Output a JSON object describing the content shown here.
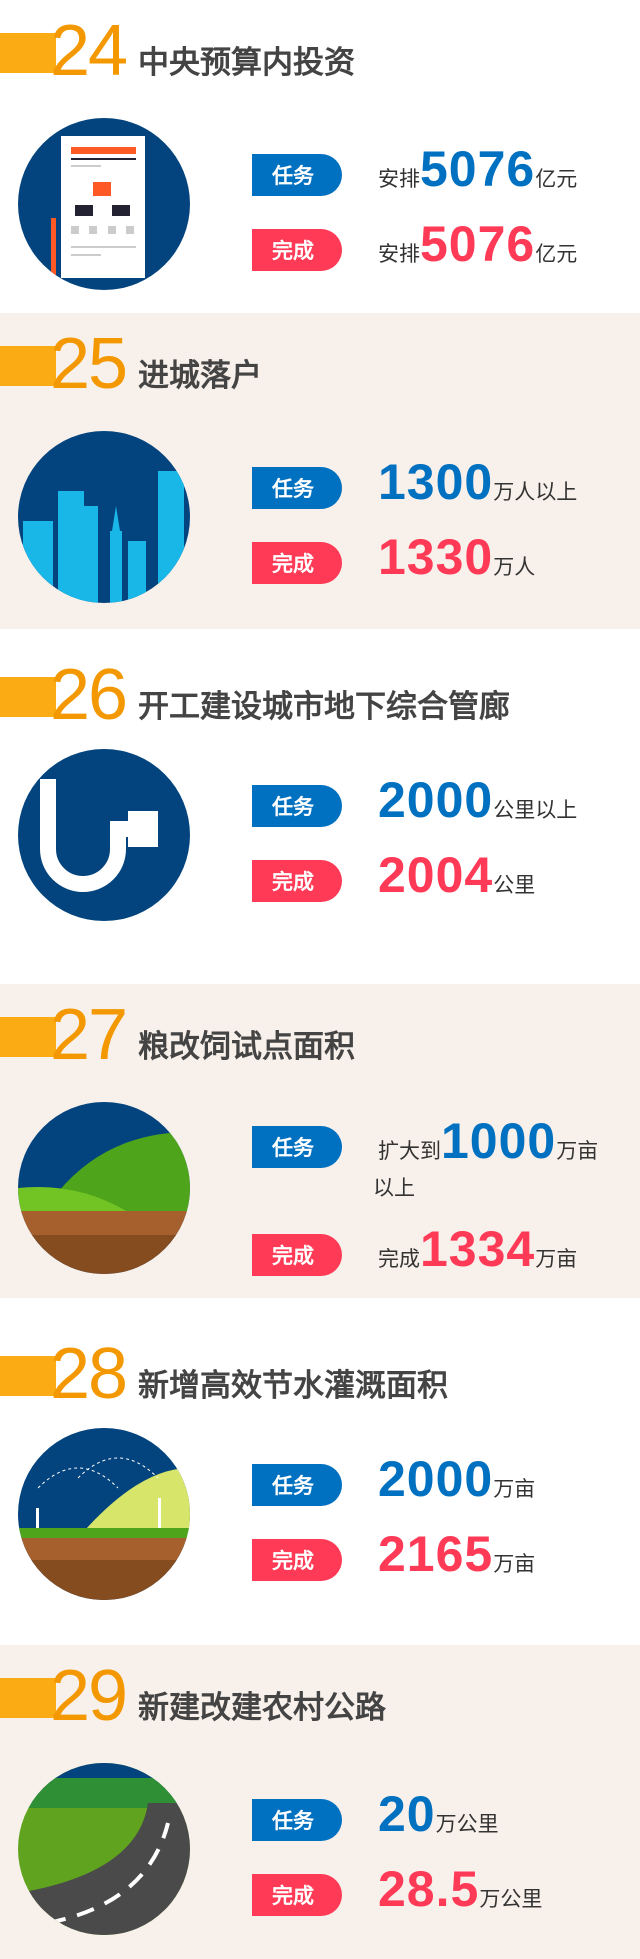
{
  "colors": {
    "task": "#0070c0",
    "done": "#ff3a56",
    "accent": "#f39800",
    "bar": "#fbab14",
    "cream": "#f8f0ea"
  },
  "labels": {
    "task": "任务",
    "done": "完成"
  },
  "sections": [
    {
      "num": "24",
      "title": "中央预算内投资",
      "icon": "document-chart-icon",
      "task": {
        "prefix": "安排",
        "value": "5076",
        "unit": "亿元"
      },
      "done": {
        "prefix": "安排",
        "value": "5076",
        "unit": "亿元"
      }
    },
    {
      "num": "25",
      "title": "进城落户",
      "icon": "city-skyline-icon",
      "task": {
        "prefix": "",
        "value": "1300",
        "unit": "万人以上"
      },
      "done": {
        "prefix": "",
        "value": "1330",
        "unit": "万人"
      }
    },
    {
      "num": "26",
      "title": "开工建设城市地下综合管廊",
      "icon": "pipe-icon",
      "task": {
        "prefix": "",
        "value": "2000",
        "unit": "公里以上"
      },
      "done": {
        "prefix": "",
        "value": "2004",
        "unit": "公里"
      }
    },
    {
      "num": "27",
      "title": "粮改饲试点面积",
      "icon": "farmland-icon",
      "task": {
        "prefix": "扩大到",
        "value": "1000",
        "unit": "万亩",
        "suffix": "以上"
      },
      "done": {
        "prefix": "完成",
        "value": "1334",
        "unit": "万亩"
      }
    },
    {
      "num": "28",
      "title": "新增高效节水灌溉面积",
      "icon": "irrigation-icon",
      "task": {
        "prefix": "",
        "value": "2000",
        "unit": "万亩"
      },
      "done": {
        "prefix": "",
        "value": "2165",
        "unit": "万亩"
      }
    },
    {
      "num": "29",
      "title": "新建改建农村公路",
      "icon": "road-icon",
      "task": {
        "prefix": "",
        "value": "20",
        "unit": "万公里"
      },
      "done": {
        "prefix": "",
        "value": "28.5",
        "unit": "万公里"
      }
    }
  ]
}
